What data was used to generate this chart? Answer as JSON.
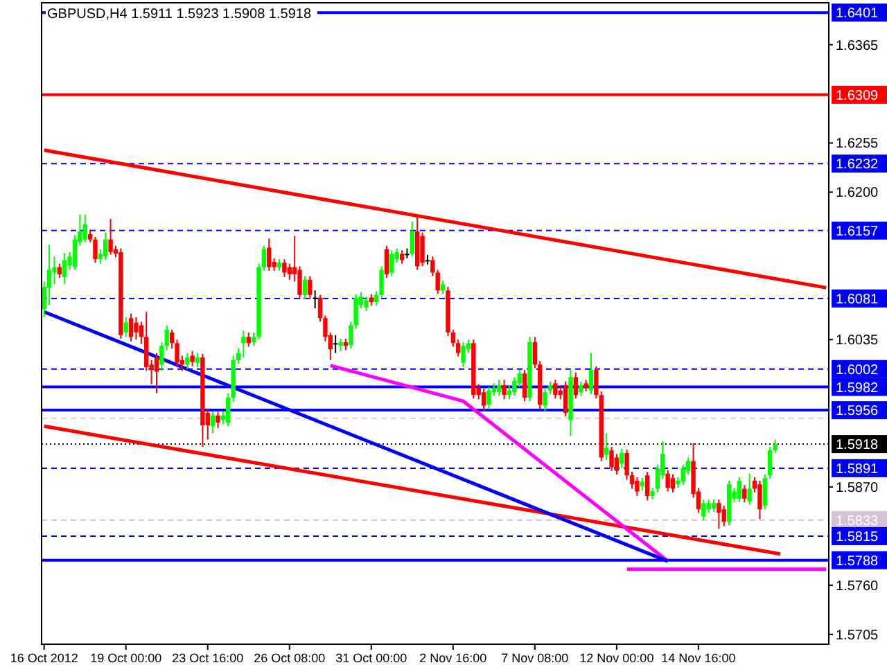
{
  "chart_data": {
    "type": "candlestick",
    "title": "GBPUSD,H4  1.5911 1.5923 1.5908 1.5918",
    "categories": [
      "16 Oct 2012",
      null,
      null,
      null,
      null,
      null,
      null,
      null,
      null,
      null,
      null,
      null,
      null,
      null,
      null,
      null,
      "19 Oct 00:00",
      null,
      null,
      null,
      null,
      null,
      null,
      null,
      null,
      null,
      null,
      null,
      null,
      null,
      null,
      null,
      "23 Oct 16:00",
      null,
      null,
      null,
      null,
      null,
      null,
      null,
      null,
      null,
      null,
      null,
      null,
      null,
      null,
      null,
      "26 Oct 08:00",
      null,
      null,
      null,
      null,
      null,
      null,
      null,
      null,
      null,
      null,
      null,
      null,
      null,
      null,
      null,
      "31 Oct 00:00",
      null,
      null,
      null,
      null,
      null,
      null,
      null,
      null,
      null,
      null,
      null,
      null,
      null,
      null,
      null,
      "2 Nov 16:00",
      null,
      null,
      null,
      null,
      null,
      null,
      null,
      null,
      null,
      null,
      null,
      null,
      null,
      null,
      null,
      "7 Nov 08:00",
      null,
      null,
      null,
      null,
      null,
      null,
      null,
      null,
      null,
      null,
      null,
      null,
      null,
      null,
      null,
      "12 Nov 00:00",
      null,
      null,
      null,
      null,
      null,
      null,
      null,
      null,
      null,
      null,
      null,
      null,
      null,
      null,
      null,
      "14 Nov 16:00",
      null,
      null,
      null,
      null,
      null,
      null,
      null,
      null,
      null,
      null,
      null,
      null,
      null,
      null,
      null,
      null,
      null,
      null,
      null,
      null,
      null,
      null,
      null,
      null,
      null
    ],
    "ylim": [
      1.5694,
      1.6412
    ],
    "yticks": [
      1.6365,
      1.6255,
      {
        "value": 1.62,
        "label": "1.6200"
      },
      1.6035,
      {
        "value": 1.587,
        "label": "1.5870"
      },
      {
        "value": 1.576,
        "label": "1.5760"
      },
      1.5705
    ],
    "grid": false,
    "ref_lines": [
      {
        "axis": "y",
        "value": 1.6401,
        "label": "1.6401",
        "color": "#0000ff",
        "line_style": "solid"
      },
      {
        "axis": "y",
        "value": 1.6309,
        "label": "1.6309",
        "color": "#ff0000",
        "line_style": "solid"
      },
      {
        "axis": "y",
        "value": 1.6232,
        "label": "1.6232",
        "color": "#0000ff",
        "line_style": "dashed"
      },
      {
        "axis": "y",
        "value": 1.6157,
        "label": "1.6157",
        "color": "#0000ff",
        "line_style": "dashed"
      },
      {
        "axis": "y",
        "value": 1.6081,
        "label": "1.6081",
        "color": "#0000ff",
        "line_style": "dashed"
      },
      {
        "axis": "y",
        "value": 1.6002,
        "label": "1.6002",
        "color": "#0000ff",
        "line_style": "dashed"
      },
      {
        "axis": "y",
        "value": 1.5982,
        "label": "1.5982",
        "color": "#0000ff",
        "line_style": "solid"
      },
      {
        "axis": "y",
        "value": 1.5956,
        "label": "1.5956",
        "color": "#0000ff",
        "line_style": "solid"
      },
      {
        "axis": "y",
        "value": 1.5947,
        "color": "#d3d3d3",
        "line_style": "dashed"
      },
      {
        "axis": "y",
        "value": 1.5918,
        "label": "1.5918",
        "color": "#000000",
        "line_style": "dotted"
      },
      {
        "axis": "y",
        "value": 1.5891,
        "label": "1.5891",
        "color": "#0000ff",
        "line_style": "dashed"
      },
      {
        "axis": "y",
        "value": 1.5833,
        "label": "1.5833",
        "color": "#d8bfd8",
        "line_style": "dashed"
      },
      {
        "axis": "y",
        "value": 1.5815,
        "label": "1.5815",
        "color": "#0000ff",
        "line_style": "dashed"
      },
      {
        "axis": "y",
        "value": 1.5788,
        "label": "1.5788",
        "color": "#0000ff",
        "line_style": "solid"
      }
    ],
    "series": [
      {
        "ohlc": [
          [
            1.6069,
            1.61,
            1.606,
            1.6094
          ],
          [
            1.6093,
            1.6141,
            1.6074,
            1.6113
          ],
          [
            1.611,
            1.6128,
            1.6097,
            1.6116
          ],
          [
            1.6116,
            1.612,
            1.6104,
            1.6108
          ],
          [
            1.6105,
            1.6132,
            1.6097,
            1.6124
          ],
          [
            1.6118,
            1.6133,
            1.6113,
            1.6128
          ],
          [
            1.6116,
            1.6152,
            1.6113,
            1.6147
          ],
          [
            1.6144,
            1.6175,
            1.614,
            1.6156
          ],
          [
            1.6147,
            1.6175,
            1.6144,
            1.6164
          ],
          [
            1.6153,
            1.6158,
            1.6144,
            1.6147
          ],
          [
            1.6147,
            1.615,
            1.6121,
            1.6125
          ],
          [
            1.6125,
            1.6136,
            1.612,
            1.6131
          ],
          [
            1.6128,
            1.6155,
            1.6124,
            1.6147
          ],
          [
            1.6147,
            1.617,
            1.613,
            1.6133
          ],
          [
            1.6136,
            1.614,
            1.6127,
            1.6131
          ],
          [
            1.6133,
            1.6137,
            1.6036,
            1.604
          ],
          [
            1.6043,
            1.606,
            1.6038,
            1.6054
          ],
          [
            1.6059,
            1.6064,
            1.6033,
            1.6038
          ],
          [
            1.6054,
            1.606,
            1.6035,
            1.6043
          ],
          [
            1.6051,
            1.6055,
            1.603,
            1.6038
          ],
          [
            1.6038,
            1.6066,
            1.6,
            1.6004
          ],
          [
            1.6007,
            1.6012,
            1.5985,
            1.6001
          ],
          [
            1.6015,
            1.602,
            1.5975,
            1.5999
          ],
          [
            1.6007,
            1.6032,
            1.6,
            1.6028
          ],
          [
            1.6028,
            1.6051,
            1.6023,
            1.6046
          ],
          [
            1.6043,
            1.6046,
            1.6025,
            1.6031
          ],
          [
            1.6031,
            1.6035,
            1.6004,
            1.6009
          ],
          [
            1.6012,
            1.6017,
            1.6,
            1.6007
          ],
          [
            1.6007,
            1.602,
            1.6002,
            1.6015
          ],
          [
            1.6017,
            1.6022,
            1.6005,
            1.601
          ],
          [
            1.6009,
            1.602,
            1.6004,
            1.6015
          ],
          [
            1.6015,
            1.6019,
            1.5915,
            1.5939
          ],
          [
            1.5953,
            1.5958,
            1.5923,
            1.5939
          ],
          [
            1.5938,
            1.5955,
            1.593,
            1.595
          ],
          [
            1.595,
            1.5954,
            1.5936,
            1.5942
          ],
          [
            1.5945,
            1.5955,
            1.594,
            1.595
          ],
          [
            1.5942,
            1.5975,
            1.5938,
            1.597
          ],
          [
            1.597,
            1.6017,
            1.5965,
            1.6012
          ],
          [
            1.6012,
            1.6025,
            1.6008,
            1.602
          ],
          [
            1.6031,
            1.6045,
            1.6015,
            1.6038
          ],
          [
            1.6038,
            1.6043,
            1.6027,
            1.6031
          ],
          [
            1.6032,
            1.6043,
            1.6028,
            1.6038
          ],
          [
            1.6038,
            1.612,
            1.6035,
            1.6116
          ],
          [
            1.6116,
            1.614,
            1.6112,
            1.6136
          ],
          [
            1.6138,
            1.6148,
            1.6112,
            1.6116
          ],
          [
            1.6122,
            1.6126,
            1.6112,
            1.6116
          ],
          [
            1.6116,
            1.6125,
            1.6112,
            1.6121
          ],
          [
            1.6121,
            1.6125,
            1.6105,
            1.611
          ],
          [
            1.6116,
            1.612,
            1.6102,
            1.6108
          ],
          [
            1.6116,
            1.6151,
            1.61,
            1.6108
          ],
          [
            1.6113,
            1.6117,
            1.608,
            1.6085
          ],
          [
            1.6085,
            1.6106,
            1.608,
            1.6102
          ],
          [
            1.6102,
            1.6106,
            1.608,
            1.6085
          ],
          [
            1.6082,
            1.609,
            1.607,
            1.6082
          ],
          [
            1.6082,
            1.6085,
            1.6055,
            1.6059
          ],
          [
            1.6059,
            1.6062,
            1.6033,
            1.6038
          ],
          [
            1.604,
            1.6043,
            1.6012,
            1.6024
          ],
          [
            1.6031,
            1.604,
            1.602,
            1.6031
          ],
          [
            1.6028,
            1.6036,
            1.6022,
            1.6032
          ],
          [
            1.6032,
            1.6036,
            1.6023,
            1.6028
          ],
          [
            1.6029,
            1.6055,
            1.6025,
            1.6051
          ],
          [
            1.6051,
            1.6086,
            1.6047,
            1.6082
          ],
          [
            1.6074,
            1.6088,
            1.607,
            1.6083
          ],
          [
            1.6071,
            1.6083,
            1.6067,
            1.6079
          ],
          [
            1.6082,
            1.6086,
            1.6073,
            1.6077
          ],
          [
            1.6077,
            1.6089,
            1.6073,
            1.6085
          ],
          [
            1.6085,
            1.6117,
            1.6082,
            1.6113
          ],
          [
            1.6136,
            1.614,
            1.6104,
            1.6108
          ],
          [
            1.611,
            1.6135,
            1.6106,
            1.6131
          ],
          [
            1.6125,
            1.6137,
            1.6121,
            1.6133
          ],
          [
            1.6131,
            1.6135,
            1.612,
            1.6124
          ],
          [
            1.6131,
            1.6137,
            1.6126,
            1.6131
          ],
          [
            1.6131,
            1.6167,
            1.6128,
            1.6156
          ],
          [
            1.6156,
            1.6172,
            1.6113,
            1.6117
          ],
          [
            1.6151,
            1.6155,
            1.6117,
            1.6121
          ],
          [
            1.6124,
            1.613,
            1.6119,
            1.6124
          ],
          [
            1.6124,
            1.6128,
            1.6106,
            1.611
          ],
          [
            1.611,
            1.6113,
            1.6086,
            1.609
          ],
          [
            1.609,
            1.6101,
            1.6086,
            1.6097
          ],
          [
            1.609,
            1.6094,
            1.6039,
            1.6043
          ],
          [
            1.6043,
            1.6046,
            1.6027,
            1.6031
          ],
          [
            1.6031,
            1.6035,
            1.6016,
            1.602
          ],
          [
            1.6009,
            1.6032,
            1.6004,
            1.6028
          ],
          [
            1.6024,
            1.6035,
            1.602,
            1.6031
          ],
          [
            1.6031,
            1.6035,
            1.5969,
            1.5973
          ],
          [
            1.5981,
            1.5985,
            1.5968,
            1.5973
          ],
          [
            1.5976,
            1.598,
            1.5955,
            1.5961
          ],
          [
            1.5962,
            1.5982,
            1.5957,
            1.5978
          ],
          [
            1.5976,
            1.5986,
            1.5972,
            1.5981
          ],
          [
            1.5976,
            1.599,
            1.5972,
            1.5984
          ],
          [
            1.5984,
            1.599,
            1.5968,
            1.5973
          ],
          [
            1.5973,
            1.5983,
            1.5968,
            1.5978
          ],
          [
            1.5976,
            1.5993,
            1.5972,
            1.5989
          ],
          [
            1.5986,
            1.6001,
            1.5982,
            1.5997
          ],
          [
            1.5997,
            1.6001,
            1.5966,
            1.597
          ],
          [
            1.597,
            1.6038,
            1.5966,
            1.6032
          ],
          [
            1.6032,
            1.6038,
            1.6003,
            1.6007
          ],
          [
            1.6007,
            1.6011,
            1.5957,
            1.5962
          ],
          [
            1.5961,
            1.598,
            1.5955,
            1.5976
          ],
          [
            1.5978,
            1.5988,
            1.5974,
            1.5984
          ],
          [
            1.5986,
            1.599,
            1.5969,
            1.5973
          ],
          [
            1.5978,
            1.5982,
            1.5968,
            1.5973
          ],
          [
            1.5984,
            1.5988,
            1.5949,
            1.5953
          ],
          [
            1.5945,
            1.6002,
            1.5927,
            1.5993
          ],
          [
            1.5993,
            1.5998,
            1.5969,
            1.5973
          ],
          [
            1.5976,
            1.5988,
            1.5972,
            1.5984
          ],
          [
            1.5986,
            1.599,
            1.5977,
            1.5981
          ],
          [
            1.5978,
            1.602,
            1.5974,
            1.6001
          ],
          [
            1.6001,
            1.6005,
            1.5969,
            1.5973
          ],
          [
            1.5973,
            1.5977,
            1.5899,
            1.5903
          ],
          [
            1.5906,
            1.593,
            1.59,
            1.5914
          ],
          [
            1.5911,
            1.5915,
            1.5888,
            1.5892
          ],
          [
            1.5903,
            1.5907,
            1.5884,
            1.5888
          ],
          [
            1.5896,
            1.5913,
            1.5891,
            1.5908
          ],
          [
            1.5908,
            1.5912,
            1.5878,
            1.5883
          ],
          [
            1.5883,
            1.5887,
            1.5868,
            1.5873
          ],
          [
            1.5877,
            1.5881,
            1.586,
            1.5865
          ],
          [
            1.5871,
            1.588,
            1.5866,
            1.5876
          ],
          [
            1.5883,
            1.5887,
            1.5855,
            1.586
          ],
          [
            1.586,
            1.5869,
            1.5856,
            1.5865
          ],
          [
            1.5868,
            1.5895,
            1.5864,
            1.5891
          ],
          [
            1.5883,
            1.5921,
            1.5879,
            1.5907
          ],
          [
            1.5885,
            1.5889,
            1.5865,
            1.5869
          ],
          [
            1.588,
            1.5884,
            1.5864,
            1.5868
          ],
          [
            1.5873,
            1.5881,
            1.5869,
            1.5877
          ],
          [
            1.5876,
            1.5895,
            1.5872,
            1.5891
          ],
          [
            1.5888,
            1.5903,
            1.5884,
            1.5899
          ],
          [
            1.5899,
            1.5919,
            1.5858,
            1.5862
          ],
          [
            1.5865,
            1.5869,
            1.5841,
            1.5845
          ],
          [
            1.5837,
            1.5856,
            1.5833,
            1.5852
          ],
          [
            1.5845,
            1.5856,
            1.5841,
            1.5852
          ],
          [
            1.5846,
            1.5856,
            1.5842,
            1.5852
          ],
          [
            1.5852,
            1.5856,
            1.5823,
            1.5841
          ],
          [
            1.5845,
            1.5849,
            1.5826,
            1.5831
          ],
          [
            1.5831,
            1.5877,
            1.5827,
            1.5873
          ],
          [
            1.5857,
            1.5869,
            1.5853,
            1.5865
          ],
          [
            1.5857,
            1.5881,
            1.5853,
            1.5877
          ],
          [
            1.5868,
            1.5872,
            1.5853,
            1.5857
          ],
          [
            1.5854,
            1.5885,
            1.585,
            1.5868
          ],
          [
            1.5877,
            1.5881,
            1.5864,
            1.5868
          ],
          [
            1.5873,
            1.5877,
            1.5834,
            1.5845
          ],
          [
            1.5849,
            1.5884,
            1.5845,
            1.588
          ],
          [
            1.5883,
            1.5915,
            1.5879,
            1.5911
          ],
          [
            1.5911,
            1.5923,
            1.5908,
            1.5918
          ],
          null,
          null,
          null,
          null,
          null,
          null,
          null,
          null,
          null,
          null
        ],
        "colors": [
          "#00ff00",
          "#00ff00",
          "#00ff00",
          "#ff0000",
          "#00ff00",
          "#00ff00",
          "#00ff00",
          "#00ff00",
          "#00ff00",
          "#ff0000",
          "#ff0000",
          "#00ff00",
          "#00ff00",
          "#ff0000",
          "#ff0000",
          "#ff0000",
          "#00ff00",
          "#ff0000",
          "#ff0000",
          "#ff0000",
          "#ff0000",
          "#ff0000",
          "#ff0000",
          "#00ff00",
          "#00ff00",
          "#ff0000",
          "#ff0000",
          "#ff0000",
          "#00ff00",
          "#ff0000",
          "#00ff00",
          "#ff0000",
          "#ff0000",
          "#00ff00",
          "#ff0000",
          "#00ff00",
          "#00ff00",
          "#00ff00",
          "#00ff00",
          "#00ff00",
          "#ff0000",
          "#00ff00",
          "#00ff00",
          "#00ff00",
          "#ff0000",
          "#ff0000",
          "#00ff00",
          "#ff0000",
          "#ff0000",
          "#ff0000",
          "#ff0000",
          "#00ff00",
          "#ff0000",
          "#000000",
          "#ff0000",
          "#ff0000",
          "#ff0000",
          "#000000",
          "#00ff00",
          "#ff0000",
          "#00ff00",
          "#00ff00",
          "#00ff00",
          "#00ff00",
          "#ff0000",
          "#00ff00",
          "#00ff00",
          "#ff0000",
          "#00ff00",
          "#00ff00",
          "#ff0000",
          "#000000",
          "#00ff00",
          "#ff0000",
          "#ff0000",
          "#000000",
          "#ff0000",
          "#ff0000",
          "#00ff00",
          "#ff0000",
          "#ff0000",
          "#ff0000",
          "#00ff00",
          "#00ff00",
          "#ff0000",
          "#ff0000",
          "#ff0000",
          "#00ff00",
          "#00ff00",
          "#00ff00",
          "#ff0000",
          "#00ff00",
          "#00ff00",
          "#00ff00",
          "#ff0000",
          "#00ff00",
          "#ff0000",
          "#ff0000",
          "#00ff00",
          "#00ff00",
          "#ff0000",
          "#ff0000",
          "#ff0000",
          "#00ff00",
          "#ff0000",
          "#00ff00",
          "#ff0000",
          "#00ff00",
          "#ff0000",
          "#ff0000",
          "#00ff00",
          "#ff0000",
          "#ff0000",
          "#00ff00",
          "#ff0000",
          "#ff0000",
          "#ff0000",
          "#00ff00",
          "#ff0000",
          "#00ff00",
          "#00ff00",
          "#00ff00",
          "#ff0000",
          "#ff0000",
          "#00ff00",
          "#00ff00",
          "#00ff00",
          "#ff0000",
          "#ff0000",
          "#00ff00",
          "#00ff00",
          "#00ff00",
          "#ff0000",
          "#ff0000",
          "#00ff00",
          "#00ff00",
          "#00ff00",
          "#ff0000",
          "#00ff00",
          "#ff0000",
          "#ff0000",
          "#00ff00",
          "#00ff00",
          "#00ff00",
          null,
          null,
          null,
          null,
          null,
          null,
          null,
          null,
          null,
          null
        ]
      },
      {
        "type": "line",
        "color": "#ff0000",
        "values": [
          1.6247,
          null,
          null,
          null,
          null,
          null,
          null,
          null,
          null,
          null,
          null,
          null,
          null,
          null,
          null,
          null,
          null,
          null,
          null,
          null,
          null,
          null,
          null,
          null,
          null,
          null,
          null,
          null,
          null,
          null,
          null,
          null,
          null,
          null,
          null,
          null,
          null,
          null,
          null,
          null,
          null,
          null,
          null,
          null,
          null,
          null,
          null,
          null,
          null,
          null,
          null,
          null,
          null,
          null,
          null,
          null,
          null,
          null,
          null,
          null,
          null,
          null,
          null,
          null,
          null,
          null,
          null,
          null,
          null,
          null,
          null,
          null,
          null,
          null,
          null,
          null,
          null,
          null,
          null,
          null,
          null,
          null,
          null,
          null,
          null,
          null,
          null,
          null,
          null,
          null,
          null,
          null,
          null,
          null,
          null,
          null,
          null,
          null,
          null,
          null,
          null,
          null,
          null,
          null,
          null,
          null,
          null,
          null,
          null,
          null,
          null,
          null,
          null,
          null,
          null,
          null,
          null,
          null,
          null,
          null,
          null,
          null,
          null,
          null,
          null,
          null,
          null,
          null,
          null,
          null,
          null,
          null,
          null,
          null,
          null,
          null,
          null,
          null,
          null,
          null,
          null,
          null,
          null,
          null,
          null,
          null,
          null,
          null,
          null,
          null,
          null,
          null,
          null,
          1.6093
        ]
      },
      {
        "type": "line",
        "color": "#ff0000",
        "values": [
          1.5938,
          null,
          null,
          null,
          null,
          null,
          null,
          null,
          null,
          null,
          null,
          null,
          null,
          null,
          null,
          null,
          null,
          null,
          null,
          null,
          null,
          null,
          null,
          null,
          null,
          null,
          null,
          null,
          null,
          null,
          null,
          null,
          null,
          null,
          null,
          null,
          null,
          null,
          null,
          null,
          null,
          null,
          null,
          null,
          null,
          null,
          null,
          null,
          null,
          null,
          null,
          null,
          null,
          null,
          null,
          null,
          null,
          null,
          null,
          null,
          null,
          null,
          null,
          null,
          null,
          null,
          null,
          null,
          null,
          null,
          null,
          null,
          null,
          null,
          null,
          null,
          null,
          null,
          null,
          null,
          null,
          null,
          null,
          null,
          null,
          null,
          null,
          null,
          null,
          null,
          null,
          null,
          null,
          null,
          null,
          null,
          null,
          null,
          null,
          null,
          null,
          null,
          null,
          null,
          null,
          null,
          null,
          null,
          null,
          null,
          null,
          null,
          null,
          null,
          null,
          null,
          null,
          null,
          null,
          null,
          null,
          null,
          null,
          null,
          null,
          null,
          null,
          null,
          null,
          null,
          null,
          null,
          null,
          null,
          null,
          null,
          null,
          null,
          null,
          null,
          null,
          null,
          null,
          null,
          1.5795,
          null,
          null,
          null,
          null,
          null,
          null,
          null,
          null,
          null
        ]
      },
      {
        "type": "line",
        "color": "#ff00ff",
        "values": [
          null,
          null,
          null,
          null,
          null,
          null,
          null,
          null,
          null,
          null,
          null,
          null,
          null,
          null,
          null,
          null,
          null,
          null,
          null,
          null,
          null,
          null,
          null,
          null,
          null,
          null,
          null,
          null,
          null,
          null,
          null,
          null,
          null,
          null,
          null,
          null,
          null,
          null,
          null,
          null,
          null,
          null,
          null,
          null,
          null,
          null,
          null,
          null,
          null,
          null,
          null,
          null,
          null,
          null,
          null,
          null,
          1.6006,
          null,
          null,
          null,
          null,
          null,
          null,
          null,
          null,
          null,
          null,
          null,
          null,
          null,
          null,
          null,
          null,
          null,
          null,
          null,
          null,
          null,
          null,
          null,
          null,
          null,
          1.5966,
          null,
          null,
          null,
          null,
          null,
          null,
          null,
          null,
          null,
          null,
          null,
          null,
          null,
          null,
          null,
          null,
          null,
          null,
          null,
          null,
          null,
          null,
          null,
          null,
          null,
          null,
          null,
          null,
          null,
          null,
          null,
          null,
          null,
          null,
          null,
          null,
          null,
          null,
          null,
          1.5787,
          null,
          null,
          null,
          null,
          null,
          null,
          null,
          null,
          null,
          null,
          null,
          null,
          null,
          null,
          null,
          null,
          null,
          null,
          null,
          null,
          null,
          null,
          null,
          null,
          null,
          null,
          null,
          null,
          null,
          null,
          null
        ]
      },
      {
        "type": "line",
        "color": "#ff00ff",
        "values": [
          null,
          null,
          null,
          null,
          null,
          null,
          null,
          null,
          null,
          null,
          null,
          null,
          null,
          null,
          null,
          null,
          null,
          null,
          null,
          null,
          null,
          null,
          null,
          null,
          null,
          null,
          null,
          null,
          null,
          null,
          null,
          null,
          null,
          null,
          null,
          null,
          null,
          null,
          null,
          null,
          null,
          null,
          null,
          null,
          null,
          null,
          null,
          null,
          null,
          null,
          null,
          null,
          null,
          null,
          null,
          null,
          null,
          null,
          null,
          null,
          null,
          null,
          null,
          null,
          null,
          null,
          null,
          null,
          null,
          null,
          null,
          null,
          null,
          null,
          null,
          null,
          null,
          null,
          null,
          null,
          null,
          null,
          null,
          null,
          null,
          null,
          null,
          null,
          null,
          null,
          null,
          null,
          null,
          null,
          null,
          null,
          null,
          null,
          null,
          null,
          null,
          null,
          null,
          null,
          null,
          null,
          null,
          null,
          null,
          null,
          null,
          null,
          null,
          null,
          1.5778,
          null,
          null,
          null,
          null,
          null,
          null,
          null,
          null,
          null,
          null,
          null,
          null,
          null,
          null,
          null,
          null,
          null,
          null,
          null,
          null,
          null,
          null,
          null,
          null,
          null,
          null,
          null,
          null,
          null,
          null,
          null,
          null,
          null,
          null,
          null,
          null,
          null,
          null,
          1.5778
        ]
      },
      {
        "type": "line",
        "color": "#0000ff",
        "values": [
          1.6066,
          null,
          null,
          null,
          null,
          null,
          null,
          null,
          null,
          null,
          null,
          null,
          null,
          null,
          null,
          null,
          null,
          null,
          null,
          null,
          null,
          null,
          null,
          null,
          null,
          null,
          null,
          null,
          null,
          null,
          null,
          null,
          null,
          null,
          null,
          null,
          null,
          null,
          null,
          null,
          null,
          null,
          null,
          null,
          null,
          null,
          null,
          null,
          null,
          null,
          null,
          null,
          null,
          null,
          null,
          null,
          null,
          null,
          null,
          null,
          null,
          null,
          null,
          null,
          null,
          null,
          null,
          null,
          null,
          null,
          null,
          null,
          null,
          null,
          null,
          null,
          null,
          null,
          null,
          null,
          null,
          null,
          null,
          null,
          null,
          null,
          null,
          null,
          null,
          null,
          null,
          null,
          null,
          null,
          null,
          null,
          null,
          null,
          null,
          null,
          null,
          null,
          null,
          null,
          null,
          null,
          null,
          null,
          null,
          null,
          null,
          null,
          null,
          null,
          null,
          null,
          null,
          null,
          null,
          null,
          null,
          null,
          1.5787,
          null,
          null,
          null,
          null,
          null,
          null,
          null,
          null,
          null,
          null,
          null,
          null,
          null,
          null,
          null,
          null,
          null,
          null,
          null,
          null,
          null,
          null,
          null,
          null,
          null,
          null,
          null,
          null,
          null,
          null,
          null
        ]
      }
    ]
  }
}
